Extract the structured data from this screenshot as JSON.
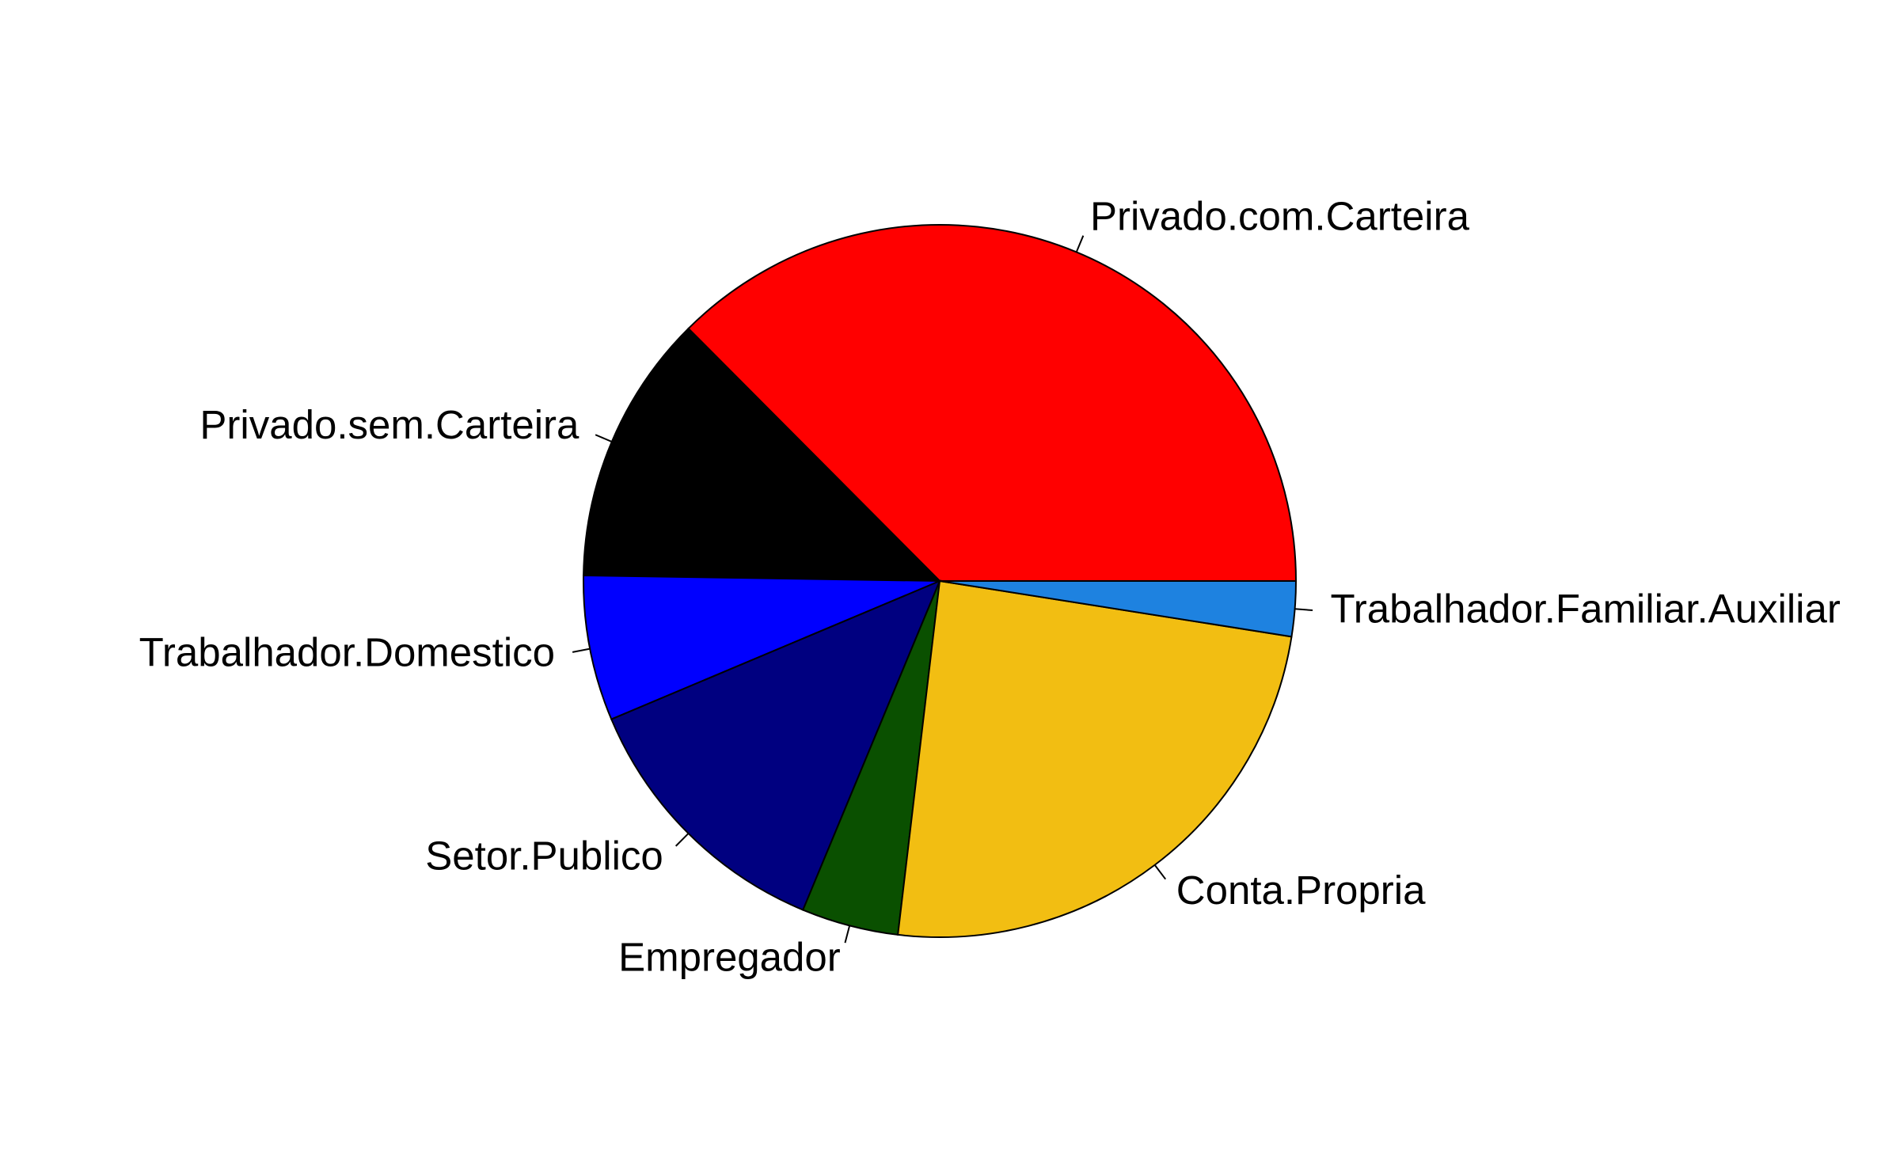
{
  "chart_data": {
    "type": "pie",
    "direction": "counterclockwise",
    "start": "3 o'clock",
    "slices": [
      {
        "label": "Privado.com.Carteira",
        "value": 37.5,
        "color": "#FF0000"
      },
      {
        "label": "Privado.sem.Carteira",
        "value": 12.3,
        "color": "#000000"
      },
      {
        "label": "Trabalhador.Domestico",
        "value": 6.6,
        "color": "#0000FF"
      },
      {
        "label": "Setor.Publico",
        "value": 12.4,
        "color": "#000080"
      },
      {
        "label": "Empregador",
        "value": 4.4,
        "color": "#0A5000"
      },
      {
        "label": "Conta.Propria",
        "value": 24.4,
        "color": "#F2BE12"
      },
      {
        "label": "Trabalhador.Familiar.Auxiliar",
        "value": 2.5,
        "color": "#1E82E0"
      }
    ]
  }
}
